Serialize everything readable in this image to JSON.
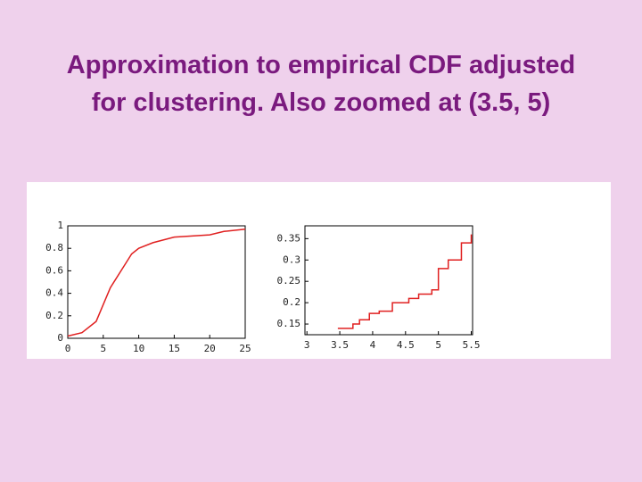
{
  "title": [
    "Approximation to empirical CDF adjusted",
    "for clustering. Also zoomed at (3.5, 5)"
  ],
  "chart_data": [
    {
      "type": "line",
      "color": "#e02020",
      "x": [
        0,
        2,
        4,
        5,
        6,
        8,
        9,
        10,
        12,
        15,
        20,
        22,
        25
      ],
      "values": [
        0.02,
        0.05,
        0.15,
        0.3,
        0.45,
        0.65,
        0.75,
        0.8,
        0.85,
        0.9,
        0.92,
        0.95,
        0.97
      ],
      "xlim": [
        0,
        25
      ],
      "ylim": [
        0,
        1
      ],
      "xticks": [
        0,
        5,
        10,
        15,
        20,
        25
      ],
      "yticks": [
        0,
        0.2,
        0.4,
        0.6,
        0.8,
        1
      ]
    },
    {
      "type": "step",
      "color": "#e02020",
      "x": [
        3.47,
        3.7,
        3.8,
        3.95,
        4.1,
        4.3,
        4.55,
        4.7,
        4.9,
        5.0,
        5.15,
        5.35,
        5.5
      ],
      "values": [
        0.14,
        0.15,
        0.16,
        0.175,
        0.18,
        0.2,
        0.21,
        0.22,
        0.23,
        0.28,
        0.3,
        0.34,
        0.36
      ],
      "xlim": [
        2.97,
        5.52
      ],
      "ylim": [
        0.125,
        0.38
      ],
      "xticks": [
        3,
        3.5,
        4,
        4.5,
        5,
        5.5
      ],
      "yticks": [
        0.15,
        0.2,
        0.25,
        0.3,
        0.35
      ]
    }
  ]
}
